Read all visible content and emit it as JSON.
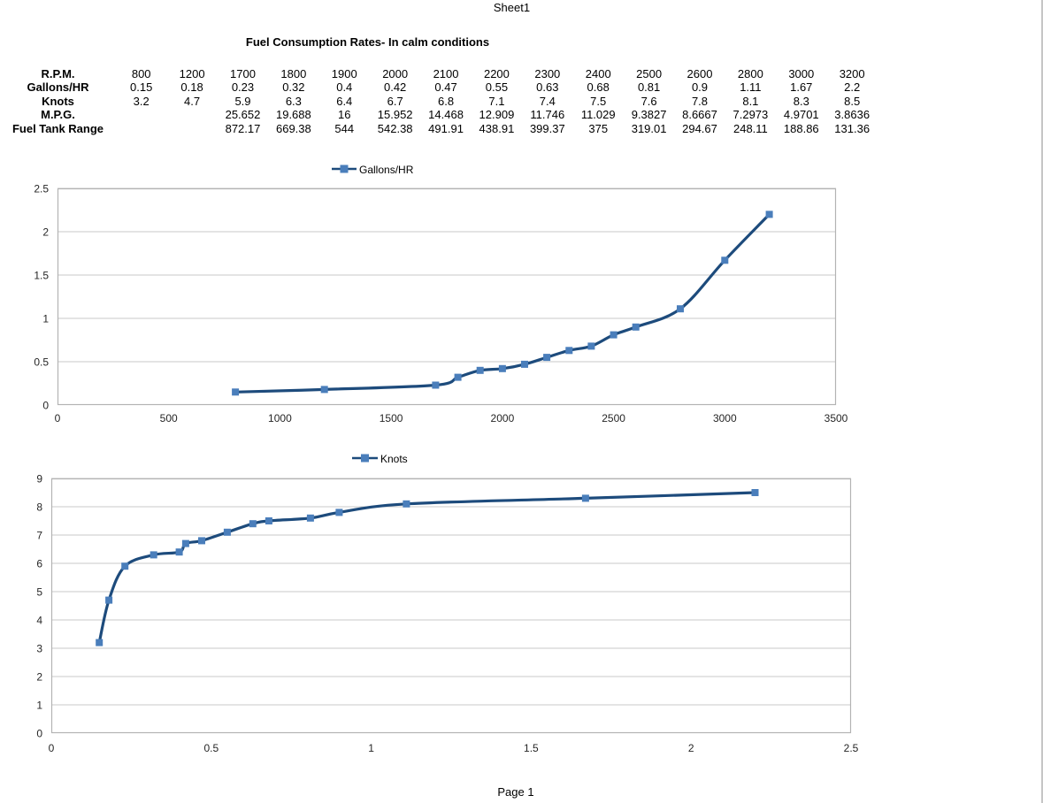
{
  "page": {
    "sheet_label": "Sheet1",
    "page_label": "Page 1"
  },
  "title": "Fuel Consumption Rates- In calm conditions",
  "table": {
    "rows": [
      {
        "label": "R.P.M.",
        "values": [
          "800",
          "1200",
          "1700",
          "1800",
          "1900",
          "2000",
          "2100",
          "2200",
          "2300",
          "2400",
          "2500",
          "2600",
          "2800",
          "3000",
          "3200"
        ]
      },
      {
        "label": "Gallons/HR",
        "values": [
          "0.15",
          "0.18",
          "0.23",
          "0.32",
          "0.4",
          "0.42",
          "0.47",
          "0.55",
          "0.63",
          "0.68",
          "0.81",
          "0.9",
          "1.11",
          "1.67",
          "2.2"
        ]
      },
      {
        "label": "Knots",
        "values": [
          "3.2",
          "4.7",
          "5.9",
          "6.3",
          "6.4",
          "6.7",
          "6.8",
          "7.1",
          "7.4",
          "7.5",
          "7.6",
          "7.8",
          "8.1",
          "8.3",
          "8.5"
        ]
      },
      {
        "label": "M.P.G.",
        "values": [
          "",
          "",
          "25.652",
          "19.688",
          "16",
          "15.952",
          "14.468",
          "12.909",
          "11.746",
          "11.029",
          "9.3827",
          "8.6667",
          "7.2973",
          "4.9701",
          "3.8636"
        ]
      },
      {
        "label": "Fuel Tank Range",
        "values": [
          "",
          "",
          "872.17",
          "669.38",
          "544",
          "542.38",
          "491.91",
          "438.91",
          "399.37",
          "375",
          "319.01",
          "294.67",
          "248.11",
          "188.86",
          "131.36"
        ]
      }
    ]
  },
  "chart_data": [
    {
      "type": "line",
      "legend": "Gallons/HR",
      "legend_position": "top",
      "title": "",
      "xlabel": "",
      "ylabel": "",
      "grid": "horizontal",
      "line_smoothed": true,
      "x": [
        800,
        1200,
        1700,
        1800,
        1900,
        2000,
        2100,
        2200,
        2300,
        2400,
        2500,
        2600,
        2800,
        3000,
        3200
      ],
      "y": [
        0.15,
        0.18,
        0.23,
        0.32,
        0.4,
        0.42,
        0.47,
        0.55,
        0.63,
        0.68,
        0.81,
        0.9,
        1.11,
        1.67,
        2.2
      ],
      "xlim": [
        0,
        3500
      ],
      "ylim": [
        0,
        2.5
      ],
      "xtick_vals": [
        0,
        500,
        1000,
        1500,
        2000,
        2500,
        3000,
        3500
      ],
      "xtick_labels": [
        "0",
        "500",
        "1000",
        "1500",
        "2000",
        "2500",
        "3000",
        "3500"
      ],
      "ytick_vals": [
        0,
        0.5,
        1,
        1.5,
        2,
        2.5
      ],
      "ytick_labels": [
        "0",
        "0.5",
        "1",
        "1.5",
        "2",
        "2.5"
      ]
    },
    {
      "type": "line",
      "legend": "Knots",
      "legend_position": "top",
      "title": "",
      "xlabel": "",
      "ylabel": "",
      "grid": "horizontal",
      "line_smoothed": true,
      "x": [
        0.15,
        0.18,
        0.23,
        0.32,
        0.4,
        0.42,
        0.47,
        0.55,
        0.63,
        0.68,
        0.81,
        0.9,
        1.11,
        1.67,
        2.2
      ],
      "y": [
        3.2,
        4.7,
        5.9,
        6.3,
        6.4,
        6.7,
        6.8,
        7.1,
        7.4,
        7.5,
        7.6,
        7.8,
        8.1,
        8.3,
        8.5
      ],
      "xlim": [
        0,
        2.5
      ],
      "ylim": [
        0,
        9
      ],
      "xtick_vals": [
        0,
        0.5,
        1,
        1.5,
        2,
        2.5
      ],
      "xtick_labels": [
        "0",
        "0.5",
        "1",
        "1.5",
        "2",
        "2.5"
      ],
      "ytick_vals": [
        0,
        1,
        2,
        3,
        4,
        5,
        6,
        7,
        8,
        9
      ],
      "ytick_labels": [
        "0",
        "1",
        "2",
        "3",
        "4",
        "5",
        "6",
        "7",
        "8",
        "9"
      ]
    }
  ],
  "colors": {
    "line": "#1d4b7c",
    "marker": "#4a7ebb",
    "grid": "#c9c9c9",
    "plot_border": "#b3b3b3",
    "axis_text": "#262626",
    "legend_text": "#000000"
  }
}
